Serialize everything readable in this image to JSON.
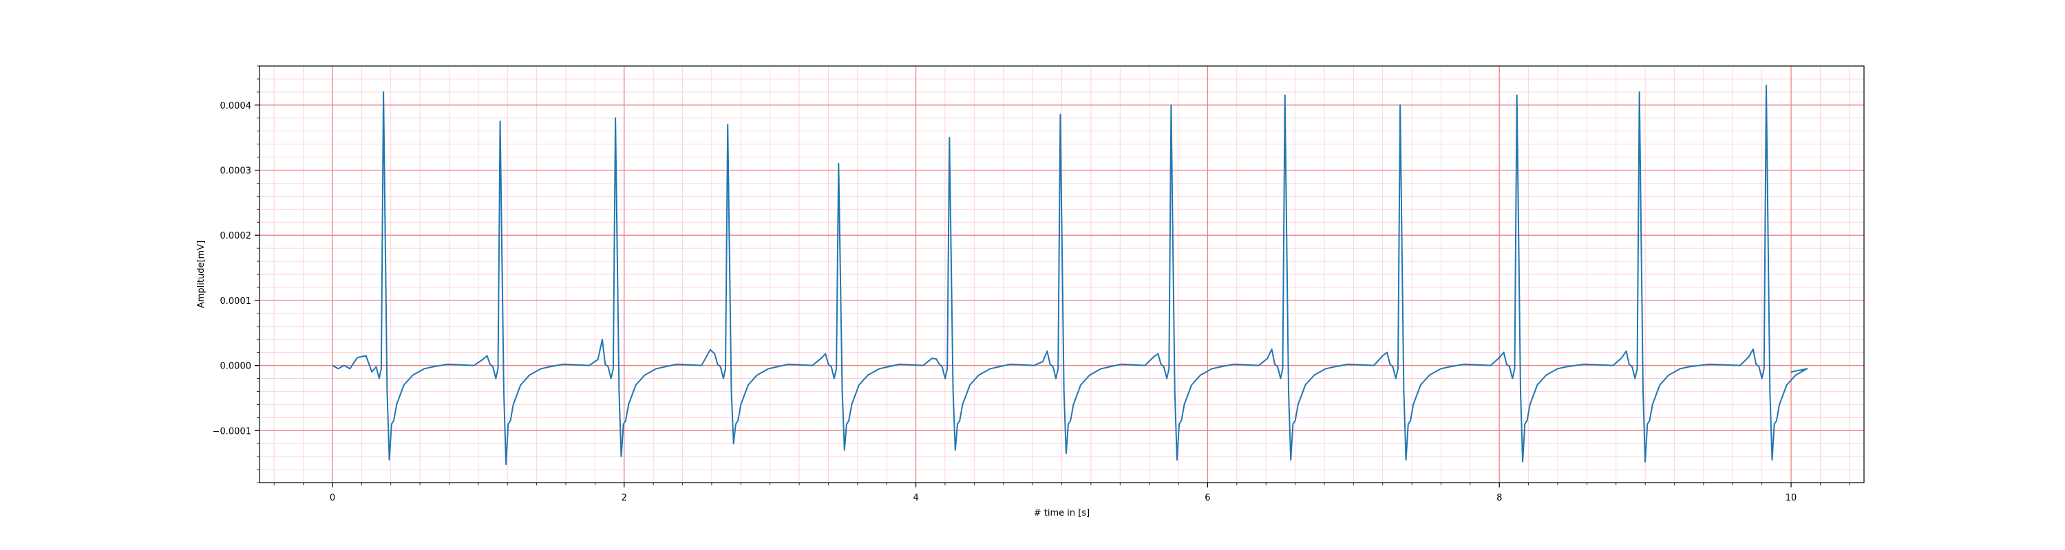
{
  "chart_data": {
    "type": "line",
    "xlabel": "# time in [s]",
    "ylabel": "Amplitude[mV]",
    "xlim": [
      -0.5,
      10.5
    ],
    "ylim": [
      -0.00018,
      0.00046
    ],
    "xticks": [
      0,
      2,
      4,
      6,
      8,
      10
    ],
    "xtick_labels": [
      "0",
      "2",
      "4",
      "6",
      "8",
      "10"
    ],
    "yticks": [
      -0.0001,
      0.0,
      0.0001,
      0.0002,
      0.0003,
      0.0004
    ],
    "ytick_labels": [
      "−0.0001",
      "0.0000",
      "0.0001",
      "0.0002",
      "0.0003",
      "0.0004"
    ],
    "grid": {
      "major": true,
      "minor": true
    },
    "colors": {
      "line": "#1f77b4",
      "major_grid": "#f08080",
      "minor_grid": "#ffc0cb",
      "axes": "#000000"
    },
    "beats": [
      {
        "r_time": 0.35,
        "r_peak": 0.00042,
        "s_trough": -0.000145,
        "t_peak": 1.5e-05
      },
      {
        "r_time": 1.15,
        "r_peak": 0.000375,
        "s_trough": -0.000152,
        "t_peak": 1.5e-05
      },
      {
        "r_time": 1.94,
        "r_peak": 0.00038,
        "s_trough": -0.00014,
        "t_peak": 4e-05
      },
      {
        "r_time": 2.71,
        "r_peak": 0.00037,
        "s_trough": -0.00012,
        "t_peak": 1.8e-05
      },
      {
        "r_time": 3.47,
        "r_peak": 0.00031,
        "s_trough": -0.00013,
        "t_peak": 1.8e-05
      },
      {
        "r_time": 4.23,
        "r_peak": 0.00035,
        "s_trough": -0.00013,
        "t_peak": 1e-05
      },
      {
        "r_time": 4.99,
        "r_peak": 0.000385,
        "s_trough": -0.000135,
        "t_peak": 2.2e-05
      },
      {
        "r_time": 5.75,
        "r_peak": 0.0004,
        "s_trough": -0.000145,
        "t_peak": 1.8e-05
      },
      {
        "r_time": 6.53,
        "r_peak": 0.000415,
        "s_trough": -0.000145,
        "t_peak": 2.5e-05
      },
      {
        "r_time": 7.32,
        "r_peak": 0.0004,
        "s_trough": -0.000145,
        "t_peak": 2e-05
      },
      {
        "r_time": 8.12,
        "r_peak": 0.000415,
        "s_trough": -0.000148,
        "t_peak": 2e-05
      },
      {
        "r_time": 8.96,
        "r_peak": 0.00042,
        "s_trough": -0.000148,
        "t_peak": 2.2e-05
      },
      {
        "r_time": 9.83,
        "r_peak": 0.00043,
        "s_trough": -0.000145,
        "t_peak": 2.5e-05
      }
    ],
    "signal_start": {
      "x": 0.0,
      "y": 0.0
    },
    "signal_end": {
      "x": 10.0,
      "y": -1e-05
    }
  }
}
